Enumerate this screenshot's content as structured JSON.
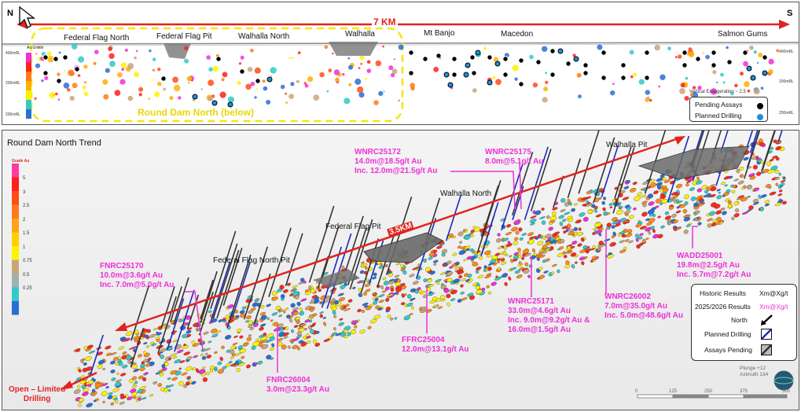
{
  "top": {
    "north": "N",
    "south": "S",
    "distance": "7 KM",
    "locations": [
      "Federal Flag North",
      "Federal Flag  Pit",
      "Walhalla North",
      "Walhalla",
      "Mt Banjo",
      "Macedon",
      "Salmon Gums"
    ],
    "inset_label": "Round Dam North (below)",
    "vertical_exaggeration": "Vertical Exaggeration ~ 2.5",
    "rl_labels": [
      "400mRL",
      "200mRL",
      "200mRL",
      "400mRL",
      "200mRL",
      "200mRL"
    ],
    "scale_title": "Au Grade",
    "legend": {
      "pending": "Pending Assays",
      "planned": "Planned Drilling"
    }
  },
  "bottom": {
    "title": "Round Dam North Trend",
    "grade_title": "Grade Au",
    "grade_values": [
      "5",
      "3",
      "2.5",
      "2",
      "1.5",
      "1",
      "0.75",
      "0.5",
      "0.25"
    ],
    "trend_distance": "3.5KM",
    "open_label": [
      "Open – Limited",
      "Drilling"
    ],
    "pits": [
      "Walhalla Pit",
      "Walhalla North",
      "Federal Flag Pit",
      "Federal Flag North Pit"
    ],
    "callouts": [
      {
        "hole": "WNRC25172",
        "lines": [
          "14.0m@18.5g/t Au",
          "Inc. 12.0m@21.5g/t Au"
        ]
      },
      {
        "hole": "WNRC25175",
        "lines": [
          "8.0m@5.1g/t Au"
        ]
      },
      {
        "hole": "FNRC25170",
        "lines": [
          "10.0m@3.6g/t Au",
          "Inc. 7.0m@5.0g/t Au"
        ]
      },
      {
        "hole": "WADD25001",
        "lines": [
          "19.8m@2.5g/t Au",
          "Inc. 5.7m@7.2g/t Au"
        ]
      },
      {
        "hole": "WNRC26002",
        "lines": [
          "7.0m@35.0g/t Au",
          "Inc. 5.0m@48.6g/t Au"
        ]
      },
      {
        "hole": "WNRC25171",
        "lines": [
          "33.0m@4.6g/t Au",
          "Inc. 9.0m@9.2g/t Au &",
          "16.0m@1.5g/t Au"
        ]
      },
      {
        "hole": "FFRC25004",
        "lines": [
          "12.0m@13.1g/t Au"
        ]
      },
      {
        "hole": "FNRC26004",
        "lines": [
          "3.0m@23.3g/t Au"
        ]
      }
    ],
    "legend": {
      "historic_label": "Historic Results",
      "historic_value": "Xm@Xg/t",
      "new_label": "2025/2026 Results",
      "new_value": "Xm@Xg/t",
      "north": "North",
      "planned": "Planned Drilling",
      "pending": "Assays Pending"
    },
    "plunge": "Plunge +12",
    "azimuth": "Azimuth 134",
    "scale_ticks": [
      "0",
      "125",
      "250",
      "375",
      "500"
    ]
  },
  "colors": {
    "magenta": "#ee2fd8",
    "red_arrow": "#e0241f",
    "yellow_box": "#f5e60f",
    "blue_drill": "#1a2bb8"
  }
}
